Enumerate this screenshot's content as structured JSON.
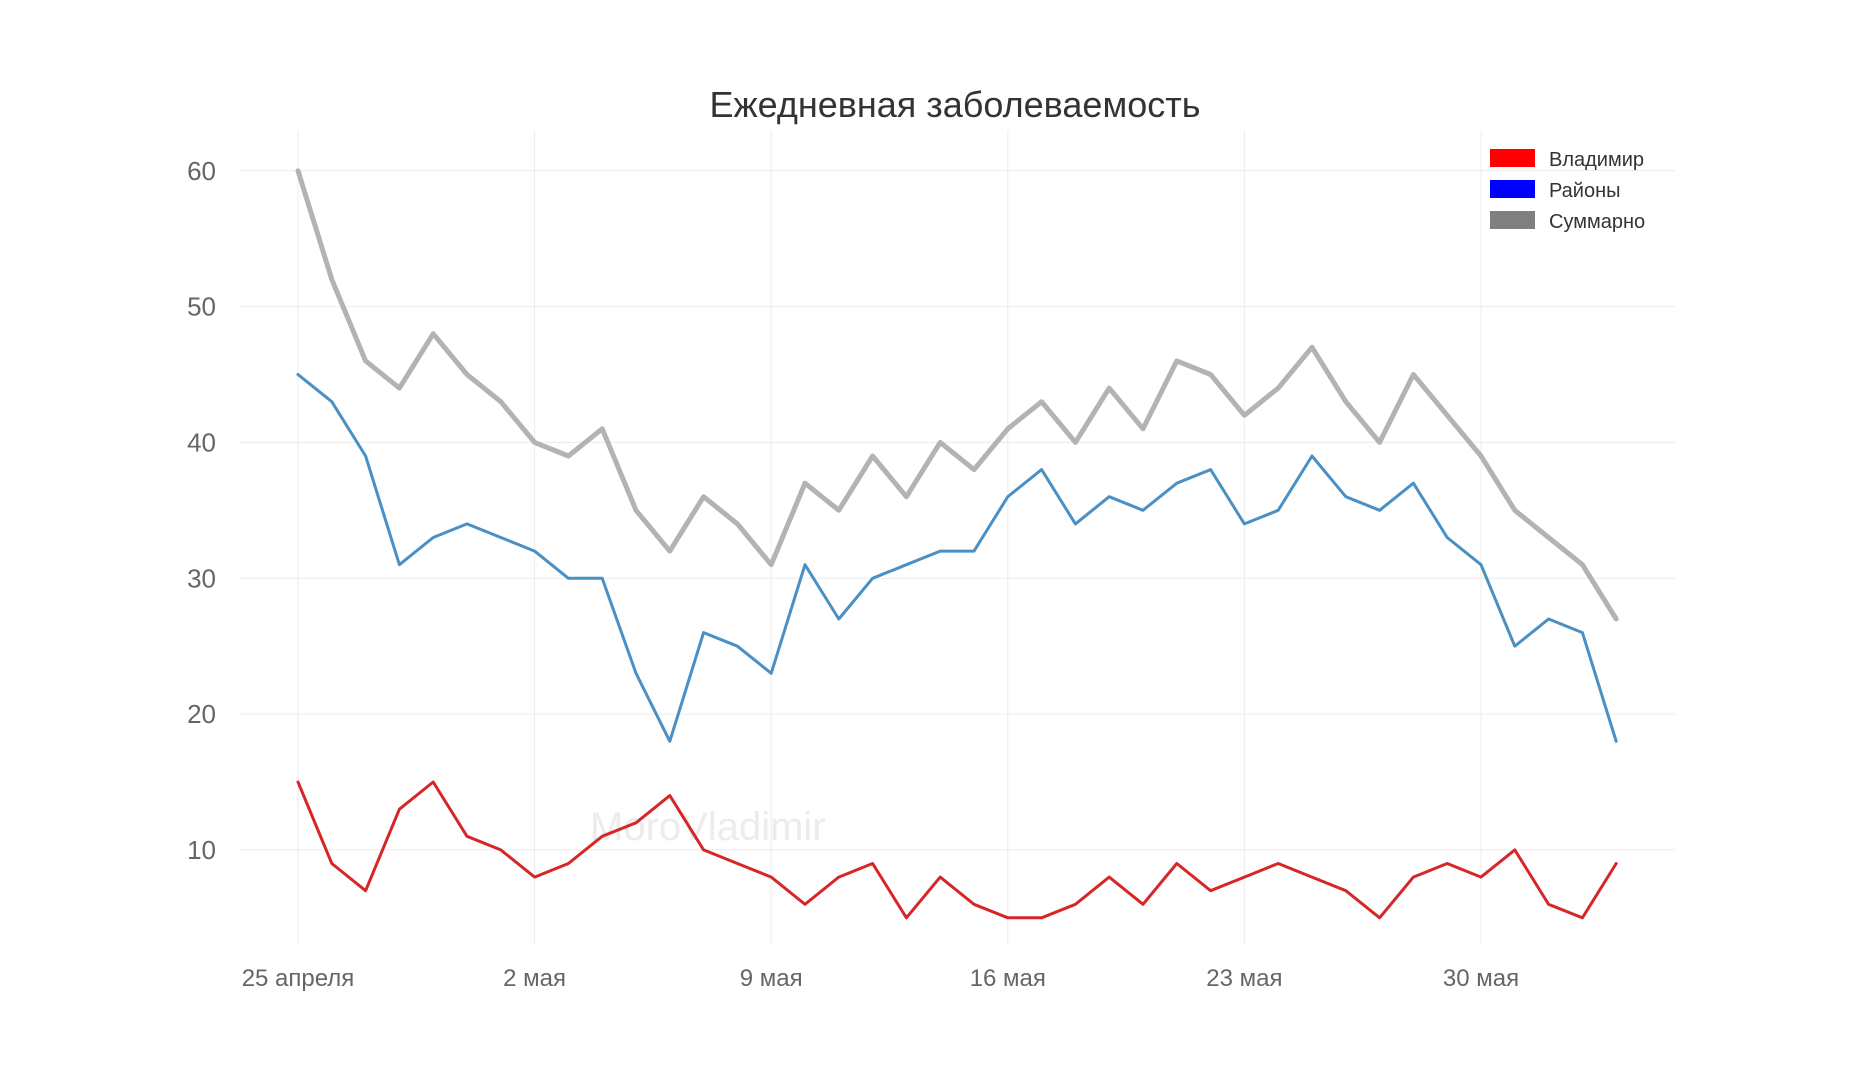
{
  "chart_data": {
    "type": "line",
    "title": "Ежедневная заболеваемость",
    "xlabel": "",
    "ylabel": "",
    "ylim": [
      3,
      63
    ],
    "yticks": [
      10,
      20,
      30,
      40,
      50,
      60
    ],
    "xticks": [
      {
        "index": 0,
        "label": "25 апреля"
      },
      {
        "index": 7,
        "label": "2 мая"
      },
      {
        "index": 14,
        "label": "9 мая"
      },
      {
        "index": 21,
        "label": "16 мая"
      },
      {
        "index": 28,
        "label": "23 мая"
      },
      {
        "index": 35,
        "label": "30 мая"
      }
    ],
    "legend_position": "top-right",
    "grid": true,
    "watermark": "MoroVladimir",
    "series": [
      {
        "name": "Суммарно",
        "line_color": "#b3b3b3",
        "legend_color": "#808080",
        "values": [
          60,
          52,
          46,
          44,
          48,
          45,
          43,
          40,
          39,
          41,
          35,
          32,
          36,
          34,
          31,
          37,
          35,
          39,
          36,
          40,
          38,
          41,
          43,
          40,
          44,
          41,
          46,
          45,
          42,
          44,
          47,
          43,
          40,
          45,
          42,
          39,
          35,
          33,
          31,
          27
        ]
      },
      {
        "name": "Районы",
        "line_color": "#4a90c4",
        "legend_color": "#0000ff",
        "values": [
          45,
          43,
          39,
          31,
          33,
          34,
          33,
          32,
          30,
          30,
          23,
          18,
          26,
          25,
          23,
          31,
          27,
          30,
          31,
          32,
          32,
          36,
          38,
          34,
          36,
          35,
          37,
          38,
          34,
          35,
          39,
          36,
          35,
          37,
          33,
          31,
          25,
          27,
          26,
          18
        ]
      },
      {
        "name": "Владимир",
        "line_color": "#d62728",
        "legend_color": "#ff0000",
        "values": [
          15,
          9,
          7,
          13,
          15,
          11,
          10,
          8,
          9,
          11,
          12,
          14,
          10,
          9,
          8,
          6,
          8,
          9,
          5,
          8,
          6,
          5,
          5,
          6,
          8,
          6,
          9,
          7,
          8,
          9,
          8,
          7,
          5,
          8,
          9,
          8,
          10,
          6,
          5,
          9
        ]
      }
    ],
    "legend_order": [
      "Владимир",
      "Районы",
      "Суммарно"
    ]
  }
}
